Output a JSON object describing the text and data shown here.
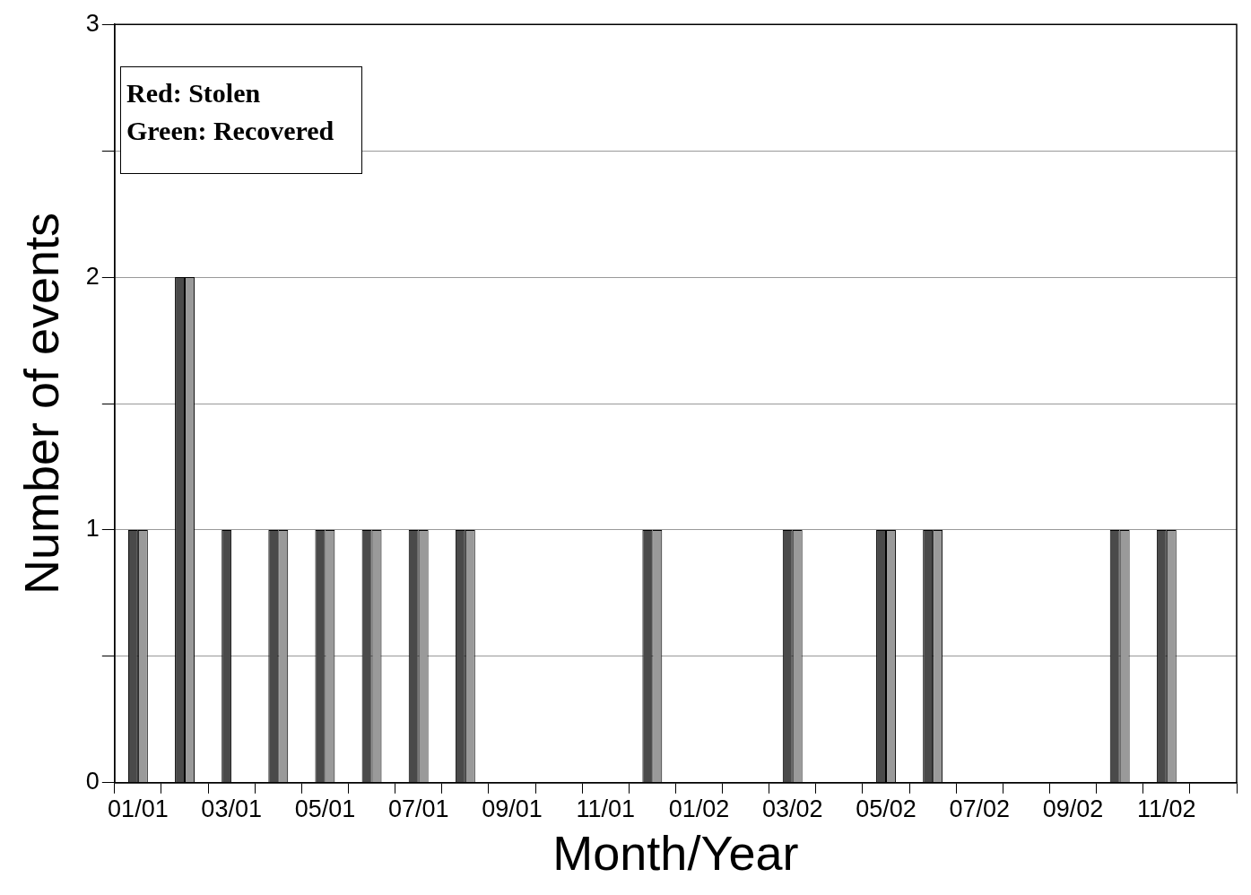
{
  "chart_data": {
    "type": "bar",
    "xlabel": "Month/Year",
    "ylabel": "Number of events",
    "categories": [
      "01/01",
      null,
      "03/01",
      null,
      "05/01",
      null,
      "07/01",
      null,
      "09/01",
      null,
      "11/01",
      null,
      "01/02",
      null,
      "03/02",
      null,
      "05/02",
      null,
      "07/02",
      null,
      "09/02",
      null,
      "11/02",
      null
    ],
    "series": [
      {
        "color": "#4a4a4a",
        "values": [
          1,
          2,
          1,
          1,
          1,
          1,
          1,
          1,
          0,
          0,
          0,
          1,
          0,
          0,
          1,
          0,
          1,
          1,
          0,
          0,
          0,
          1,
          1,
          0
        ]
      },
      {
        "color": "#9a9a9a",
        "values": [
          1,
          2,
          0,
          1,
          1,
          1,
          1,
          1,
          0,
          0,
          0,
          1,
          0,
          0,
          1,
          0,
          1,
          1,
          0,
          0,
          0,
          1,
          1,
          0
        ]
      }
    ],
    "ylim": [
      0,
      3
    ],
    "yticks": [
      0,
      {
        "value": 0.5,
        "label": null
      },
      1,
      {
        "value": 1.5,
        "label": null
      },
      2,
      {
        "value": 2.5,
        "label": null
      },
      3
    ],
    "grid": "y",
    "legend": false,
    "annotations": [
      "Red: Stolen",
      "Green: Recovered"
    ]
  }
}
